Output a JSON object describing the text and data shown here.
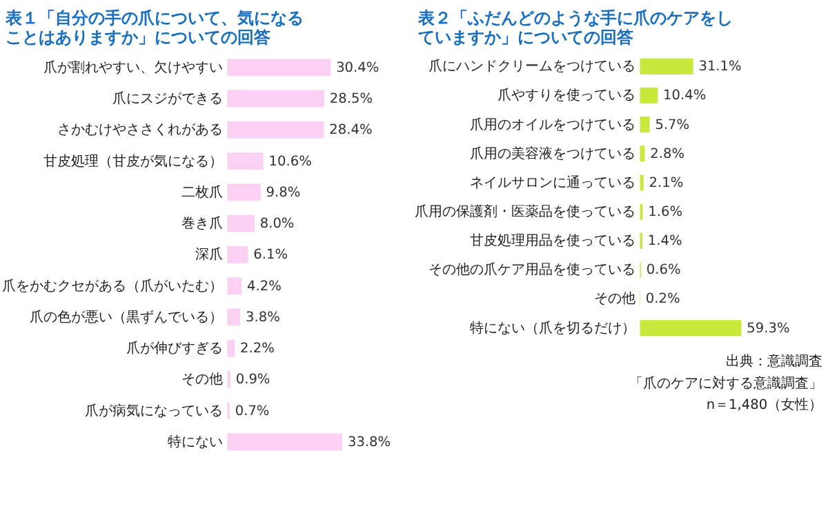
{
  "chart_data": [
    {
      "type": "bar",
      "orientation": "horizontal",
      "title": "表１「自分の手の爪について、気になることはありますか」についての回答",
      "color": "#fbd0f3",
      "categories": [
        "爪が割れやすい、欠けやすい",
        "爪にスジができる",
        "さかむけやささくれがある",
        "甘皮処理（甘皮が気になる）",
        "二枚爪",
        "巻き爪",
        "深爪",
        "爪をかむクセがある（爪がいたむ）",
        "爪の色が悪い（黒ずんでいる）",
        "爪が伸びすぎる",
        "その他",
        "爪が病気になっている",
        "特にない"
      ],
      "values": [
        30.4,
        28.5,
        28.4,
        10.6,
        9.8,
        8.0,
        6.1,
        4.2,
        3.8,
        2.2,
        0.9,
        0.7,
        33.8
      ],
      "value_labels": [
        "30.4%",
        "28.5%",
        "28.4%",
        "10.6%",
        "9.8%",
        "8.0%",
        "6.1%",
        "4.2%",
        "3.8%",
        "2.2%",
        "0.9%",
        "0.7%",
        "33.8%"
      ]
    },
    {
      "type": "bar",
      "orientation": "horizontal",
      "title": "表２「ふだんどのような手に爪のケアをしていますか」についての回答",
      "color": "#c8e83c",
      "categories": [
        "爪にハンドクリームをつけている",
        "爪やすりを使っている",
        "爪用のオイルをつけている",
        "爪用の美容液をつけている",
        "ネイルサロンに通っている",
        "爪用の保護剤・医薬品を使っている",
        "甘皮処理用品を使っている",
        "その他の爪ケア用品を使っている",
        "その他",
        "特にない（爪を切るだけ）"
      ],
      "values": [
        31.1,
        10.4,
        5.7,
        2.8,
        2.1,
        1.6,
        1.4,
        0.6,
        0.2,
        59.3
      ],
      "value_labels": [
        "31.1%",
        "10.4%",
        "5.7%",
        "2.8%",
        "2.1%",
        "1.6%",
        "1.4%",
        "0.6%",
        "0.2%",
        "59.3%"
      ],
      "annotations": [
        "出典：意識調査",
        "「爪のケアに対する意識調査」",
        "n＝1,480（女性）"
      ]
    }
  ]
}
